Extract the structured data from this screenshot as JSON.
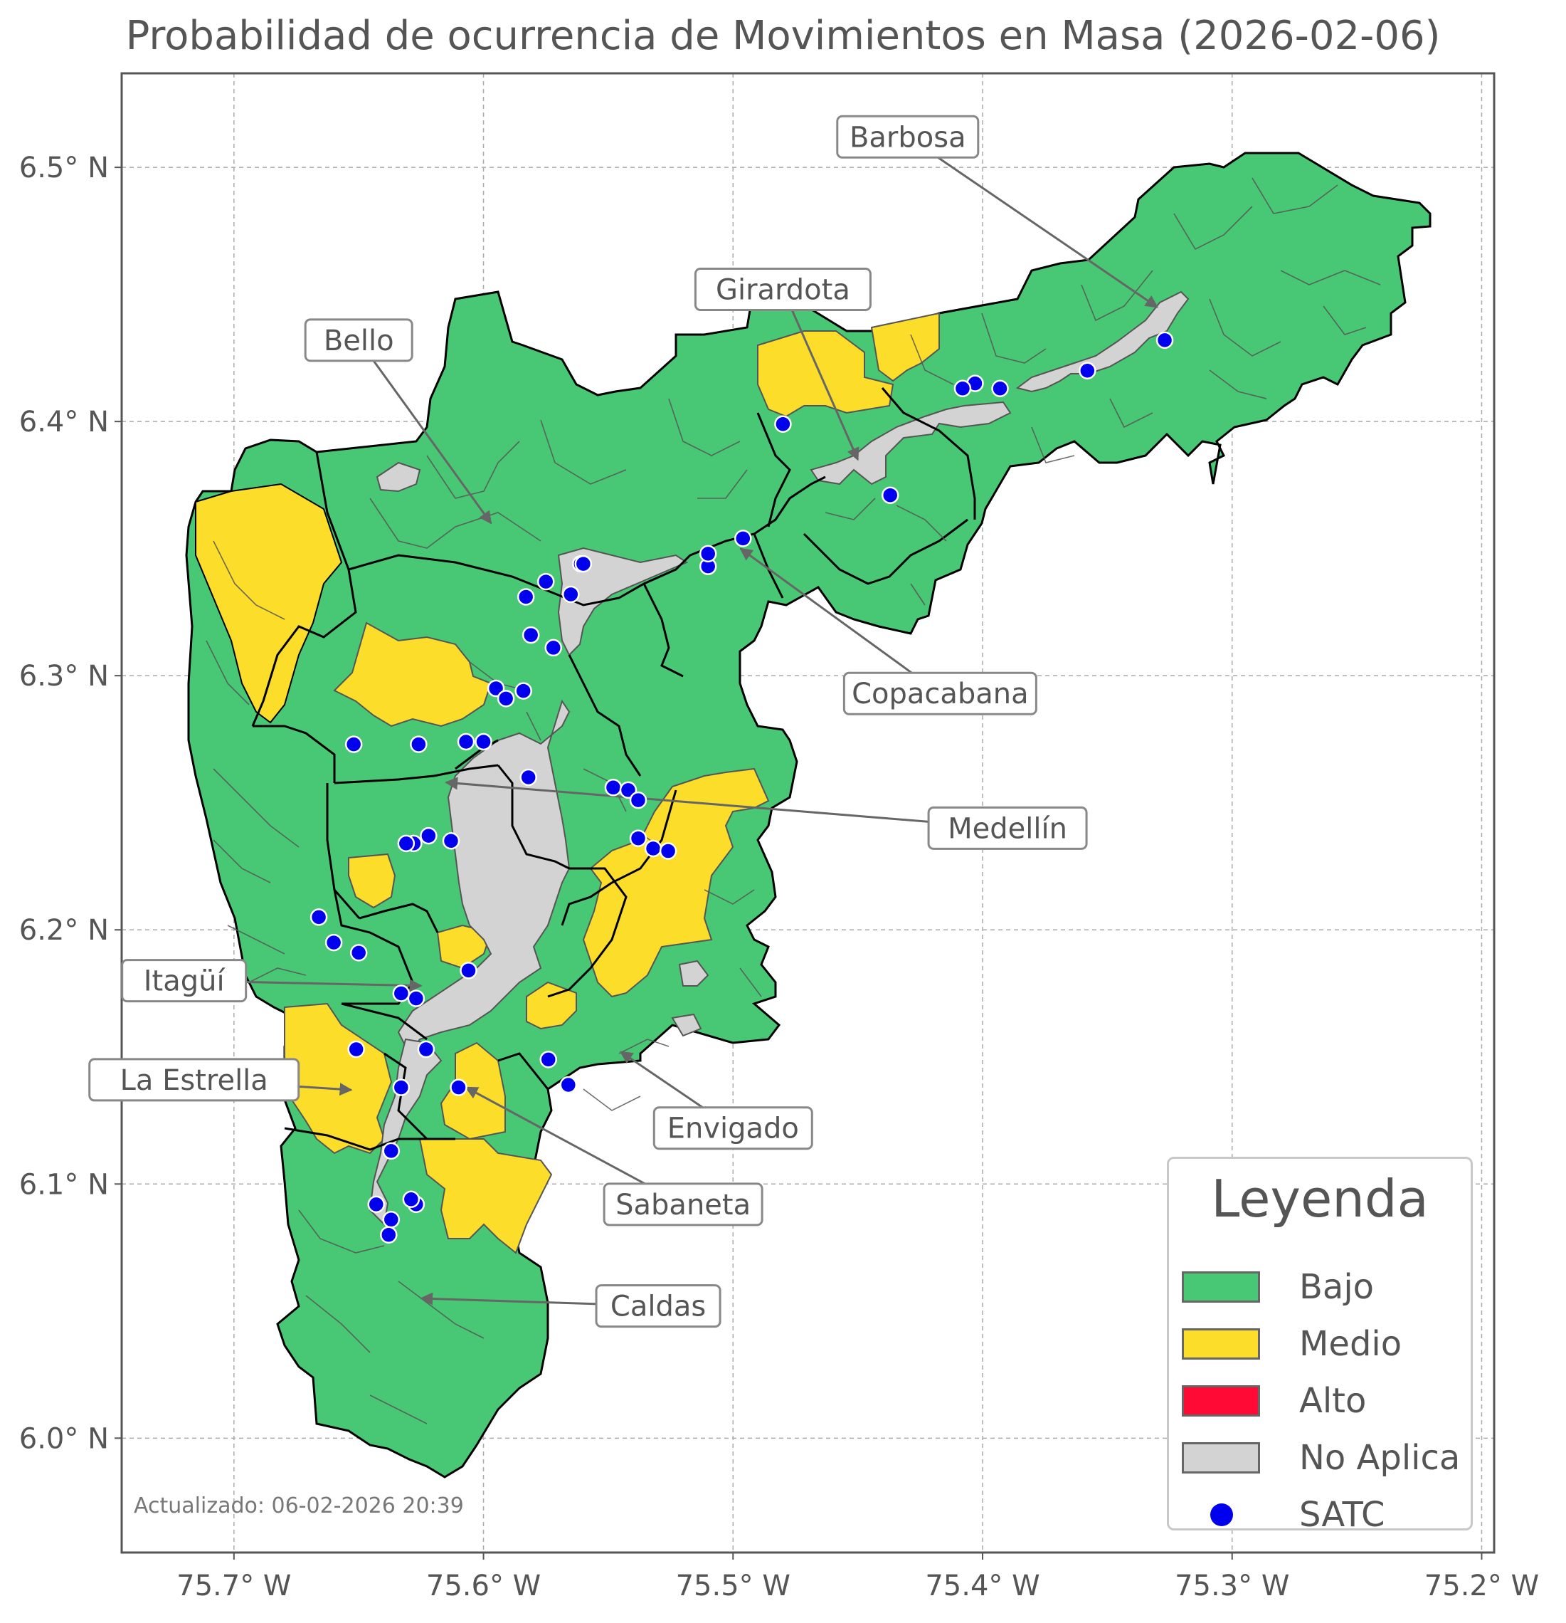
{
  "title": "Probabilidad de ocurrencia de Movimientos en Masa (2026-02-06)",
  "footer": "Actualizado: 06-02-2026 20:39",
  "axes": {
    "lon_min": -75.745,
    "lon_max": -75.195,
    "lat_min": 5.955,
    "lat_max": 6.537,
    "x_ticks": [
      {
        "value": -75.7,
        "label": "75.7° W"
      },
      {
        "value": -75.6,
        "label": "75.6° W"
      },
      {
        "value": -75.5,
        "label": "75.5° W"
      },
      {
        "value": -75.4,
        "label": "75.4° W"
      },
      {
        "value": -75.3,
        "label": "75.3° W"
      },
      {
        "value": -75.2,
        "label": "75.2° W"
      }
    ],
    "y_ticks": [
      {
        "value": 6.5,
        "label": "6.5° N"
      },
      {
        "value": 6.4,
        "label": "6.4° N"
      },
      {
        "value": 6.3,
        "label": "6.3° N"
      },
      {
        "value": 6.2,
        "label": "6.2° N"
      },
      {
        "value": 6.1,
        "label": "6.1° N"
      },
      {
        "value": 6.0,
        "label": "6.0° N"
      }
    ],
    "grid": true
  },
  "colors": {
    "bajo": "#48c774",
    "medio": "#fbdd2a",
    "alto": "#ff0a35",
    "no_aplica": "#d3d3d3",
    "satc": "#0000ee",
    "boundary": "#000000",
    "sub_boundary": "#555555"
  },
  "legend": {
    "title": "Leyenda",
    "placement": "lower-right",
    "items": [
      {
        "label": "Bajo",
        "kind": "swatch",
        "color_key": "bajo"
      },
      {
        "label": "Medio",
        "kind": "swatch",
        "color_key": "medio"
      },
      {
        "label": "Alto",
        "kind": "swatch",
        "color_key": "alto"
      },
      {
        "label": "No Aplica",
        "kind": "swatch",
        "color_key": "no_aplica"
      },
      {
        "label": "SATC",
        "kind": "dot",
        "color_key": "satc"
      }
    ]
  },
  "municipalities": [
    {
      "name": "Barbosa",
      "label_lon": -75.43,
      "label_lat": 6.512,
      "target_lon": -75.33,
      "target_lat": 6.445
    },
    {
      "name": "Girardota",
      "label_lon": -75.48,
      "label_lat": 6.452,
      "target_lon": -75.45,
      "target_lat": 6.385
    },
    {
      "name": "Bello",
      "label_lon": -75.65,
      "label_lat": 6.432,
      "target_lon": -75.597,
      "target_lat": 6.36
    },
    {
      "name": "Copacabana",
      "label_lon": -75.417,
      "label_lat": 6.293,
      "target_lon": -75.497,
      "target_lat": 6.35
    },
    {
      "name": "Medellín",
      "label_lon": -75.39,
      "label_lat": 6.24,
      "target_lon": -75.615,
      "target_lat": 6.258
    },
    {
      "name": "Itagüí",
      "label_lon": -75.72,
      "label_lat": 6.18,
      "target_lon": -75.625,
      "target_lat": 6.178
    },
    {
      "name": "La Estrella",
      "label_lon": -75.716,
      "label_lat": 6.141,
      "target_lon": -75.653,
      "target_lat": 6.137
    },
    {
      "name": "Envigado",
      "label_lon": -75.5,
      "label_lat": 6.122,
      "target_lon": -75.545,
      "target_lat": 6.152
    },
    {
      "name": "Sabaneta",
      "label_lon": -75.52,
      "label_lat": 6.092,
      "target_lon": -75.607,
      "target_lat": 6.138
    },
    {
      "name": "Caldas",
      "label_lon": -75.53,
      "label_lat": 6.052,
      "target_lon": -75.625,
      "target_lat": 6.055
    }
  ],
  "satc_points": [
    [
      -75.327,
      6.432
    ],
    [
      -75.358,
      6.42
    ],
    [
      -75.393,
      6.413
    ],
    [
      -75.403,
      6.415
    ],
    [
      -75.408,
      6.413
    ],
    [
      -75.48,
      6.399
    ],
    [
      -75.437,
      6.371
    ],
    [
      -75.496,
      6.354
    ],
    [
      -75.51,
      6.343
    ],
    [
      -75.51,
      6.348
    ],
    [
      -75.561,
      6.344
    ],
    [
      -75.56,
      6.344
    ],
    [
      -75.565,
      6.332
    ],
    [
      -75.575,
      6.337
    ],
    [
      -75.583,
      6.331
    ],
    [
      -75.581,
      6.316
    ],
    [
      -75.572,
      6.311
    ],
    [
      -75.595,
      6.295
    ],
    [
      -75.591,
      6.291
    ],
    [
      -75.584,
      6.294
    ],
    [
      -75.652,
      6.273
    ],
    [
      -75.626,
      6.273
    ],
    [
      -75.607,
      6.274
    ],
    [
      -75.6,
      6.274
    ],
    [
      -75.582,
      6.26
    ],
    [
      -75.548,
      6.256
    ],
    [
      -75.542,
      6.255
    ],
    [
      -75.538,
      6.251
    ],
    [
      -75.538,
      6.236
    ],
    [
      -75.532,
      6.232
    ],
    [
      -75.526,
      6.231
    ],
    [
      -75.622,
      6.237
    ],
    [
      -75.628,
      6.234
    ],
    [
      -75.631,
      6.234
    ],
    [
      -75.613,
      6.235
    ],
    [
      -75.666,
      6.205
    ],
    [
      -75.66,
      6.195
    ],
    [
      -75.65,
      6.191
    ],
    [
      -75.606,
      6.184
    ],
    [
      -75.633,
      6.175
    ],
    [
      -75.627,
      6.173
    ],
    [
      -75.651,
      6.153
    ],
    [
      -75.623,
      6.153
    ],
    [
      -75.574,
      6.149
    ],
    [
      -75.566,
      6.139
    ],
    [
      -75.633,
      6.138
    ],
    [
      -75.61,
      6.138
    ],
    [
      -75.637,
      6.113
    ],
    [
      -75.643,
      6.092
    ],
    [
      -75.627,
      6.092
    ],
    [
      -75.629,
      6.094
    ],
    [
      -75.637,
      6.086
    ],
    [
      -75.638,
      6.08
    ]
  ]
}
